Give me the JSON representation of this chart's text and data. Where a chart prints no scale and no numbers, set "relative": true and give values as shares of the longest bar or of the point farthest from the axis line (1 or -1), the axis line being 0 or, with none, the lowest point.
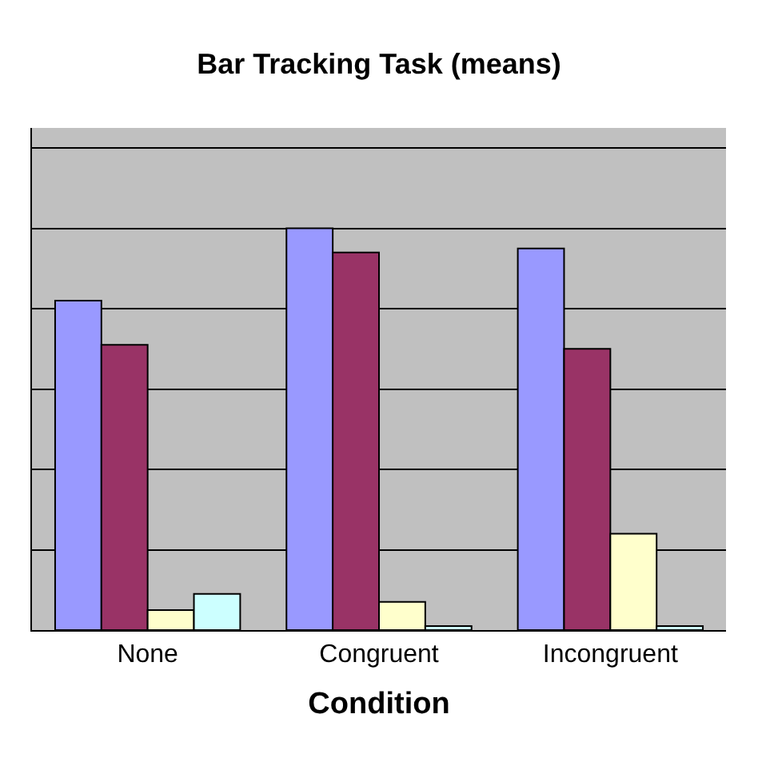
{
  "chart_data": {
    "type": "bar",
    "title": "Bar Tracking Task (means)",
    "xlabel": "Condition",
    "categories": [
      "None",
      "Congruent",
      "Incongruent"
    ],
    "relative": true,
    "grid": "y",
    "series": [
      {
        "color": "#9999ff",
        "values": [
          0.82,
          1,
          0.95
        ]
      },
      {
        "color": "#993366",
        "values": [
          0.71,
          0.94,
          0.7
        ]
      },
      {
        "color": "#ffffcc",
        "values": [
          0.05,
          0.07,
          0.24
        ]
      },
      {
        "color": "#ccffff",
        "values": [
          0.09,
          0.01,
          0.01
        ]
      }
    ]
  }
}
